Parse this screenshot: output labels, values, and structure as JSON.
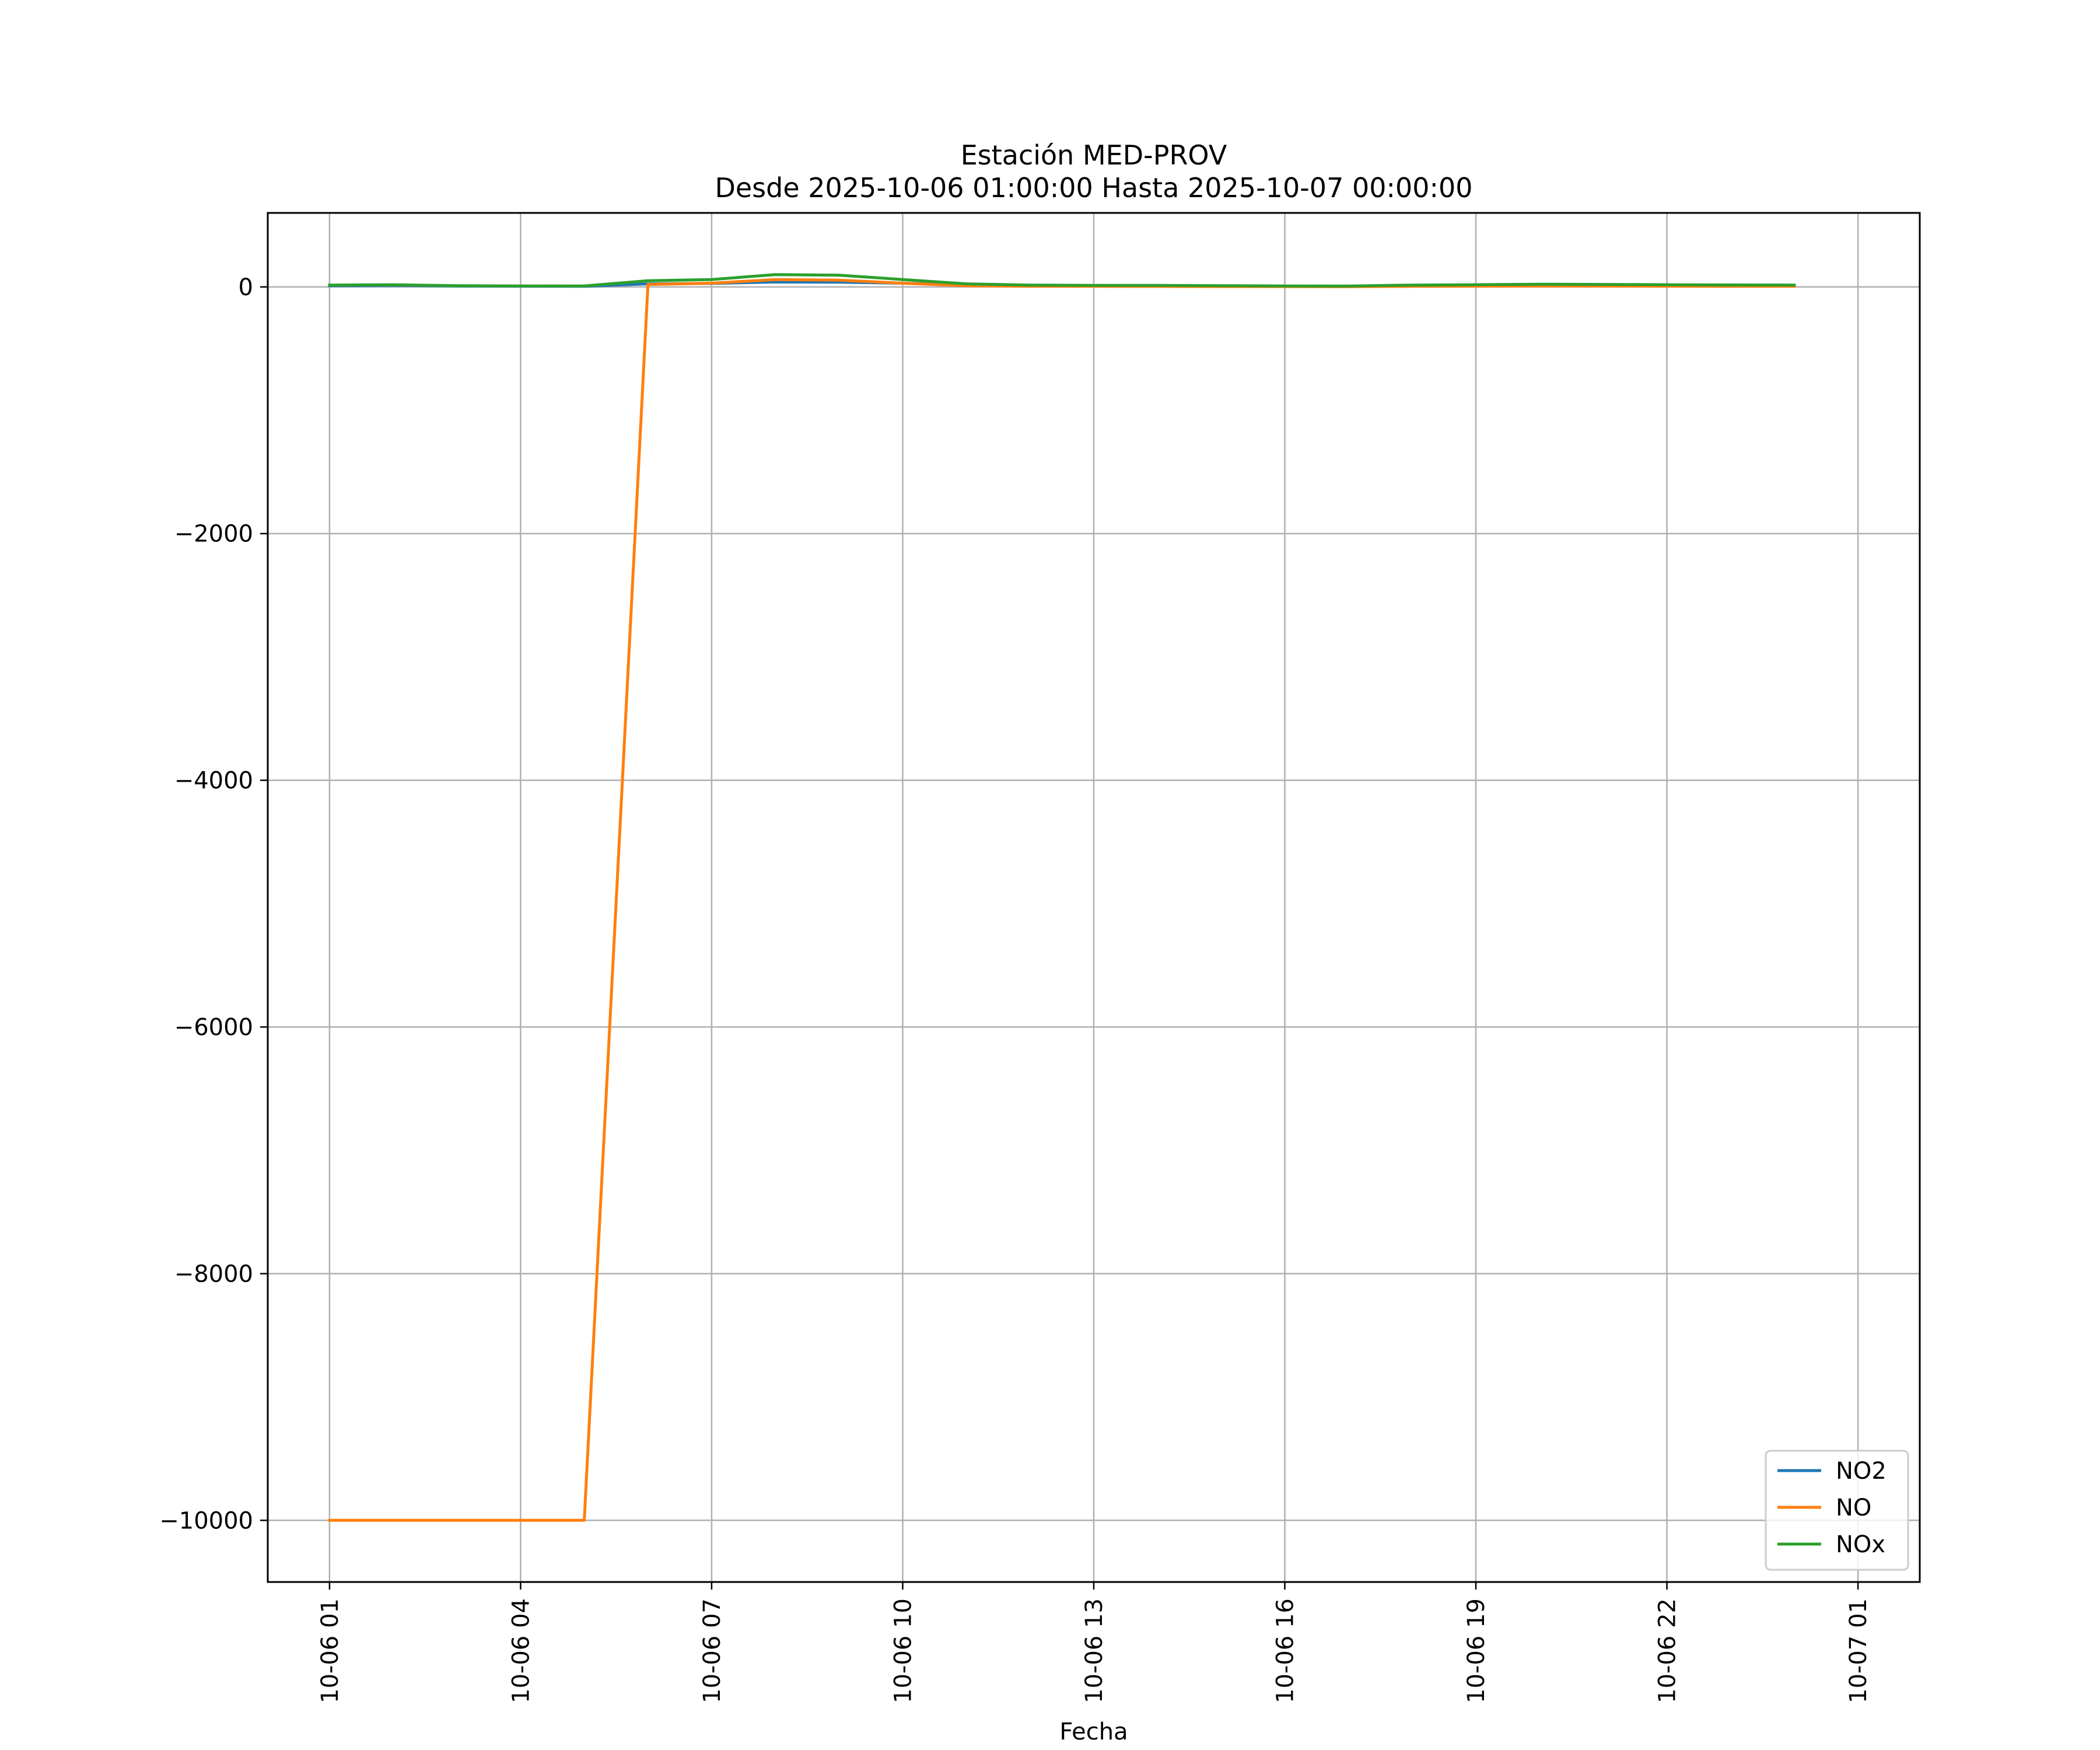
{
  "chart_data": {
    "type": "line",
    "title": "Estación MED-PROV",
    "subtitle": "Desde 2025-10-06 01:00:00 Hasta 2025-10-07 00:00:00",
    "xlabel": "Fecha",
    "ylabel": "",
    "x": [
      "2025-10-06 01:00",
      "2025-10-06 02:00",
      "2025-10-06 03:00",
      "2025-10-06 04:00",
      "2025-10-06 05:00",
      "2025-10-06 06:00",
      "2025-10-06 07:00",
      "2025-10-06 08:00",
      "2025-10-06 09:00",
      "2025-10-06 10:00",
      "2025-10-06 11:00",
      "2025-10-06 12:00",
      "2025-10-06 13:00",
      "2025-10-06 14:00",
      "2025-10-06 15:00",
      "2025-10-06 16:00",
      "2025-10-06 17:00",
      "2025-10-06 18:00",
      "2025-10-06 19:00",
      "2025-10-06 20:00",
      "2025-10-06 21:00",
      "2025-10-06 22:00",
      "2025-10-06 23:00",
      "2025-10-07 00:00"
    ],
    "series": [
      {
        "name": "NO2",
        "color": "#1f77b4",
        "values": [
          10,
          12,
          8,
          6,
          5,
          25,
          28,
          40,
          38,
          30,
          15,
          10,
          8,
          8,
          6,
          5,
          5,
          10,
          12,
          14,
          13,
          12,
          11,
          10
        ]
      },
      {
        "name": "NO",
        "color": "#ff7f0e",
        "values": [
          -10000,
          -10000,
          -10000,
          -10000,
          -10000,
          20,
          30,
          60,
          55,
          30,
          10,
          5,
          5,
          4,
          3,
          3,
          2,
          5,
          6,
          8,
          7,
          6,
          5,
          5
        ]
      },
      {
        "name": "NOx",
        "color": "#2ca02c",
        "values": [
          15,
          18,
          10,
          8,
          8,
          50,
          60,
          100,
          95,
          60,
          25,
          15,
          12,
          12,
          10,
          8,
          7,
          15,
          18,
          22,
          20,
          18,
          16,
          15
        ]
      }
    ],
    "xticks": [
      "10-06 01",
      "10-06 04",
      "10-06 07",
      "10-06 10",
      "10-06 13",
      "10-06 16",
      "10-06 19",
      "10-06 22",
      "10-07 01"
    ],
    "yticks": [
      0,
      -2000,
      -4000,
      -6000,
      -8000,
      -10000
    ],
    "ytick_labels": [
      "0",
      "−2000",
      "−4000",
      "−6000",
      "−8000",
      "−10000"
    ],
    "ylim": [
      -10500,
      600
    ],
    "xlim": [
      "2025-10-06 00:01:48",
      "2025-10-07 01:58:12"
    ],
    "grid": true,
    "legend": "lower right"
  }
}
